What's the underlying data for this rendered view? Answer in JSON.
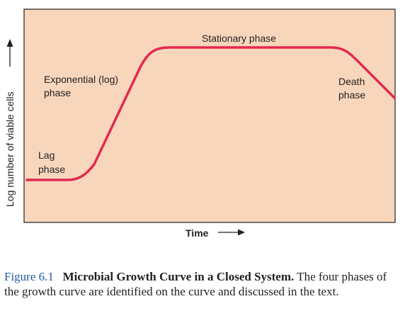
{
  "diagram": {
    "y_axis_label": "Log number of viable cells",
    "x_axis_label": "Time",
    "phases": {
      "lag": [
        "Lag",
        "phase"
      ],
      "exponential": [
        "Exponential (log)",
        "phase"
      ],
      "stationary": [
        "Stationary phase"
      ],
      "death": [
        "Death",
        "phase"
      ]
    },
    "colors": {
      "plot_background": "#f8d6bc",
      "curve": "#e2294f",
      "frame": "#231f20"
    }
  },
  "caption": {
    "figure_number": "Figure 6.1",
    "title": "Microbial Growth Curve in a Closed System.",
    "text": "The four phases of the growth curve are identified on the curve and discussed in the text."
  }
}
